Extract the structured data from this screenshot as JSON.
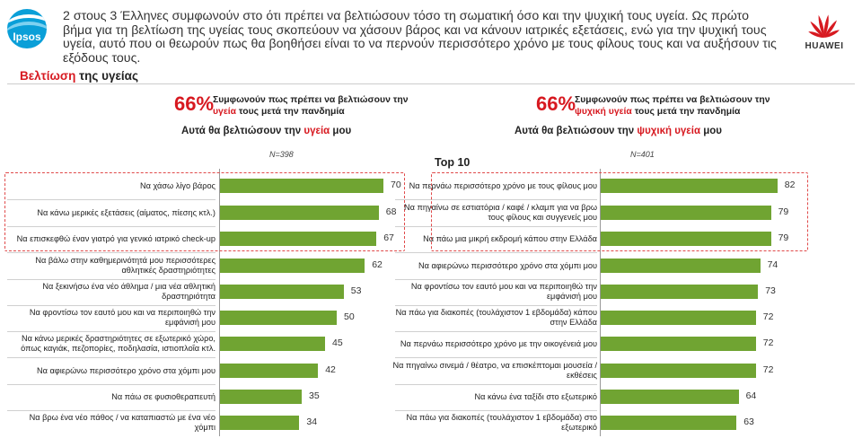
{
  "header": {
    "text": "2 στους 3 Έλληνες συμφωνούν στο ότι πρέπει να βελτιώσουν τόσο τη σωματική όσο και την ψυχική τους υγεία. Ως πρώτο βήμα για τη βελτίωση της υγείας τους σκοπεύουν να χάσουν βάρος και να κάνουν ιατρικές εξετάσεις, ενώ για την ψυχική τους υγεία, αυτό που οι θεωρούν πως θα βοηθήσει είναι το να περνούν περισσότερο χρόνο με τους φίλους τους και να αυξήσουν τις εξόδους τους.",
    "ipsos_logo": "Ipsos",
    "huawei_logo": "HUAWEI"
  },
  "section": {
    "title_red": "Βελτίωση",
    "title_rest": " της υγείας"
  },
  "top10": "Top 10",
  "colors": {
    "bar": "#70a432",
    "accent": "#d71920",
    "dash": "#e04a4a"
  },
  "chart_data": [
    {
      "type": "bar",
      "orientation": "horizontal",
      "stat_pct": "66%",
      "stat_line1": "Συμφωνούν πως πρέπει να βελτιώσουν την",
      "stat_line2_red": "υγεία",
      "stat_line2_rest": " τους μετά την πανδημία",
      "subtitle_pre": "Αυτά θα βελτιώσουν την ",
      "subtitle_red": "υγεία",
      "subtitle_post": " μου",
      "n_label": "N=398",
      "xlim": [
        0,
        100
      ],
      "highlighted_top": 3,
      "categories": [
        "Να χάσω λίγο βάρος",
        "Να κάνω μερικές εξετάσεις (αίματος, πίεσης κτλ.)",
        "Να επισκεφθώ έναν γιατρό για γενικό ιατρικό check-up",
        "Να βάλω στην καθημερινότητά μου περισσότερες αθλητικές δραστηριότητες",
        "Να ξεκινήσω ένα νέο άθλημα / μια νέα αθλητική δραστηριότητα",
        "Να φροντίσω τον εαυτό μου και να περιποιηθώ την εμφάνισή μου",
        "Να κάνω μερικές δραστηριότητες σε εξωτερικό χώρο, όπως καγιάκ, πεζοπορίες, ποδηλασία, ιστιοπλοΐα κτλ.",
        "Να αφιερώνω περισσότερο χρόνο στα χόμπι μου",
        "Να πάω σε φυσιοθεραπευτή",
        "Να βρω ένα νέο πάθος / να καταπιαστώ με ένα νέο χόμπι"
      ],
      "values": [
        70,
        68,
        67,
        62,
        53,
        50,
        45,
        42,
        35,
        34
      ]
    },
    {
      "type": "bar",
      "orientation": "horizontal",
      "stat_pct": "66%",
      "stat_line1": "Συμφωνούν πως πρέπει να βελτιώσουν την",
      "stat_line2_red": "ψυχική υγεία",
      "stat_line2_rest": " τους μετά την πανδημία",
      "subtitle_pre": "Αυτά θα βελτιώσουν την ",
      "subtitle_red": "ψυχική υγεία",
      "subtitle_post": " μου",
      "n_label": "N=401",
      "xlim": [
        0,
        100
      ],
      "highlighted_top": 3,
      "categories": [
        "Να περνάω περισσότερο χρόνο με τους φίλους μου",
        "Να πηγαίνω σε εστιατόρια / καφέ / κλαμπ για να βρω τους φίλους και συγγενείς μου",
        "Να πάω μια μικρή εκδρομή κάπου στην Ελλάδα",
        "Να αφιερώνω περισσότερο χρόνο στα χόμπι μου",
        "Να φροντίσω τον εαυτό μου και να περιποιηθώ την εμφάνισή μου",
        "Να πάω για διακοπές (τουλάχιστον 1 εβδομάδα) κάπου στην Ελλάδα",
        "Να περνάω περισσότερο χρόνο με την οικογένειά μου",
        "Να πηγαίνω σινεμά / θέατρο, να επισκέπτομαι μουσεία / εκθέσεις",
        "Να κάνω ένα ταξίδι στο εξωτερικό",
        "Να πάω για διακοπές (τουλάχιστον 1 εβδομάδα) στο εξωτερικό"
      ],
      "values": [
        82,
        79,
        79,
        74,
        73,
        72,
        72,
        72,
        64,
        63
      ]
    }
  ]
}
